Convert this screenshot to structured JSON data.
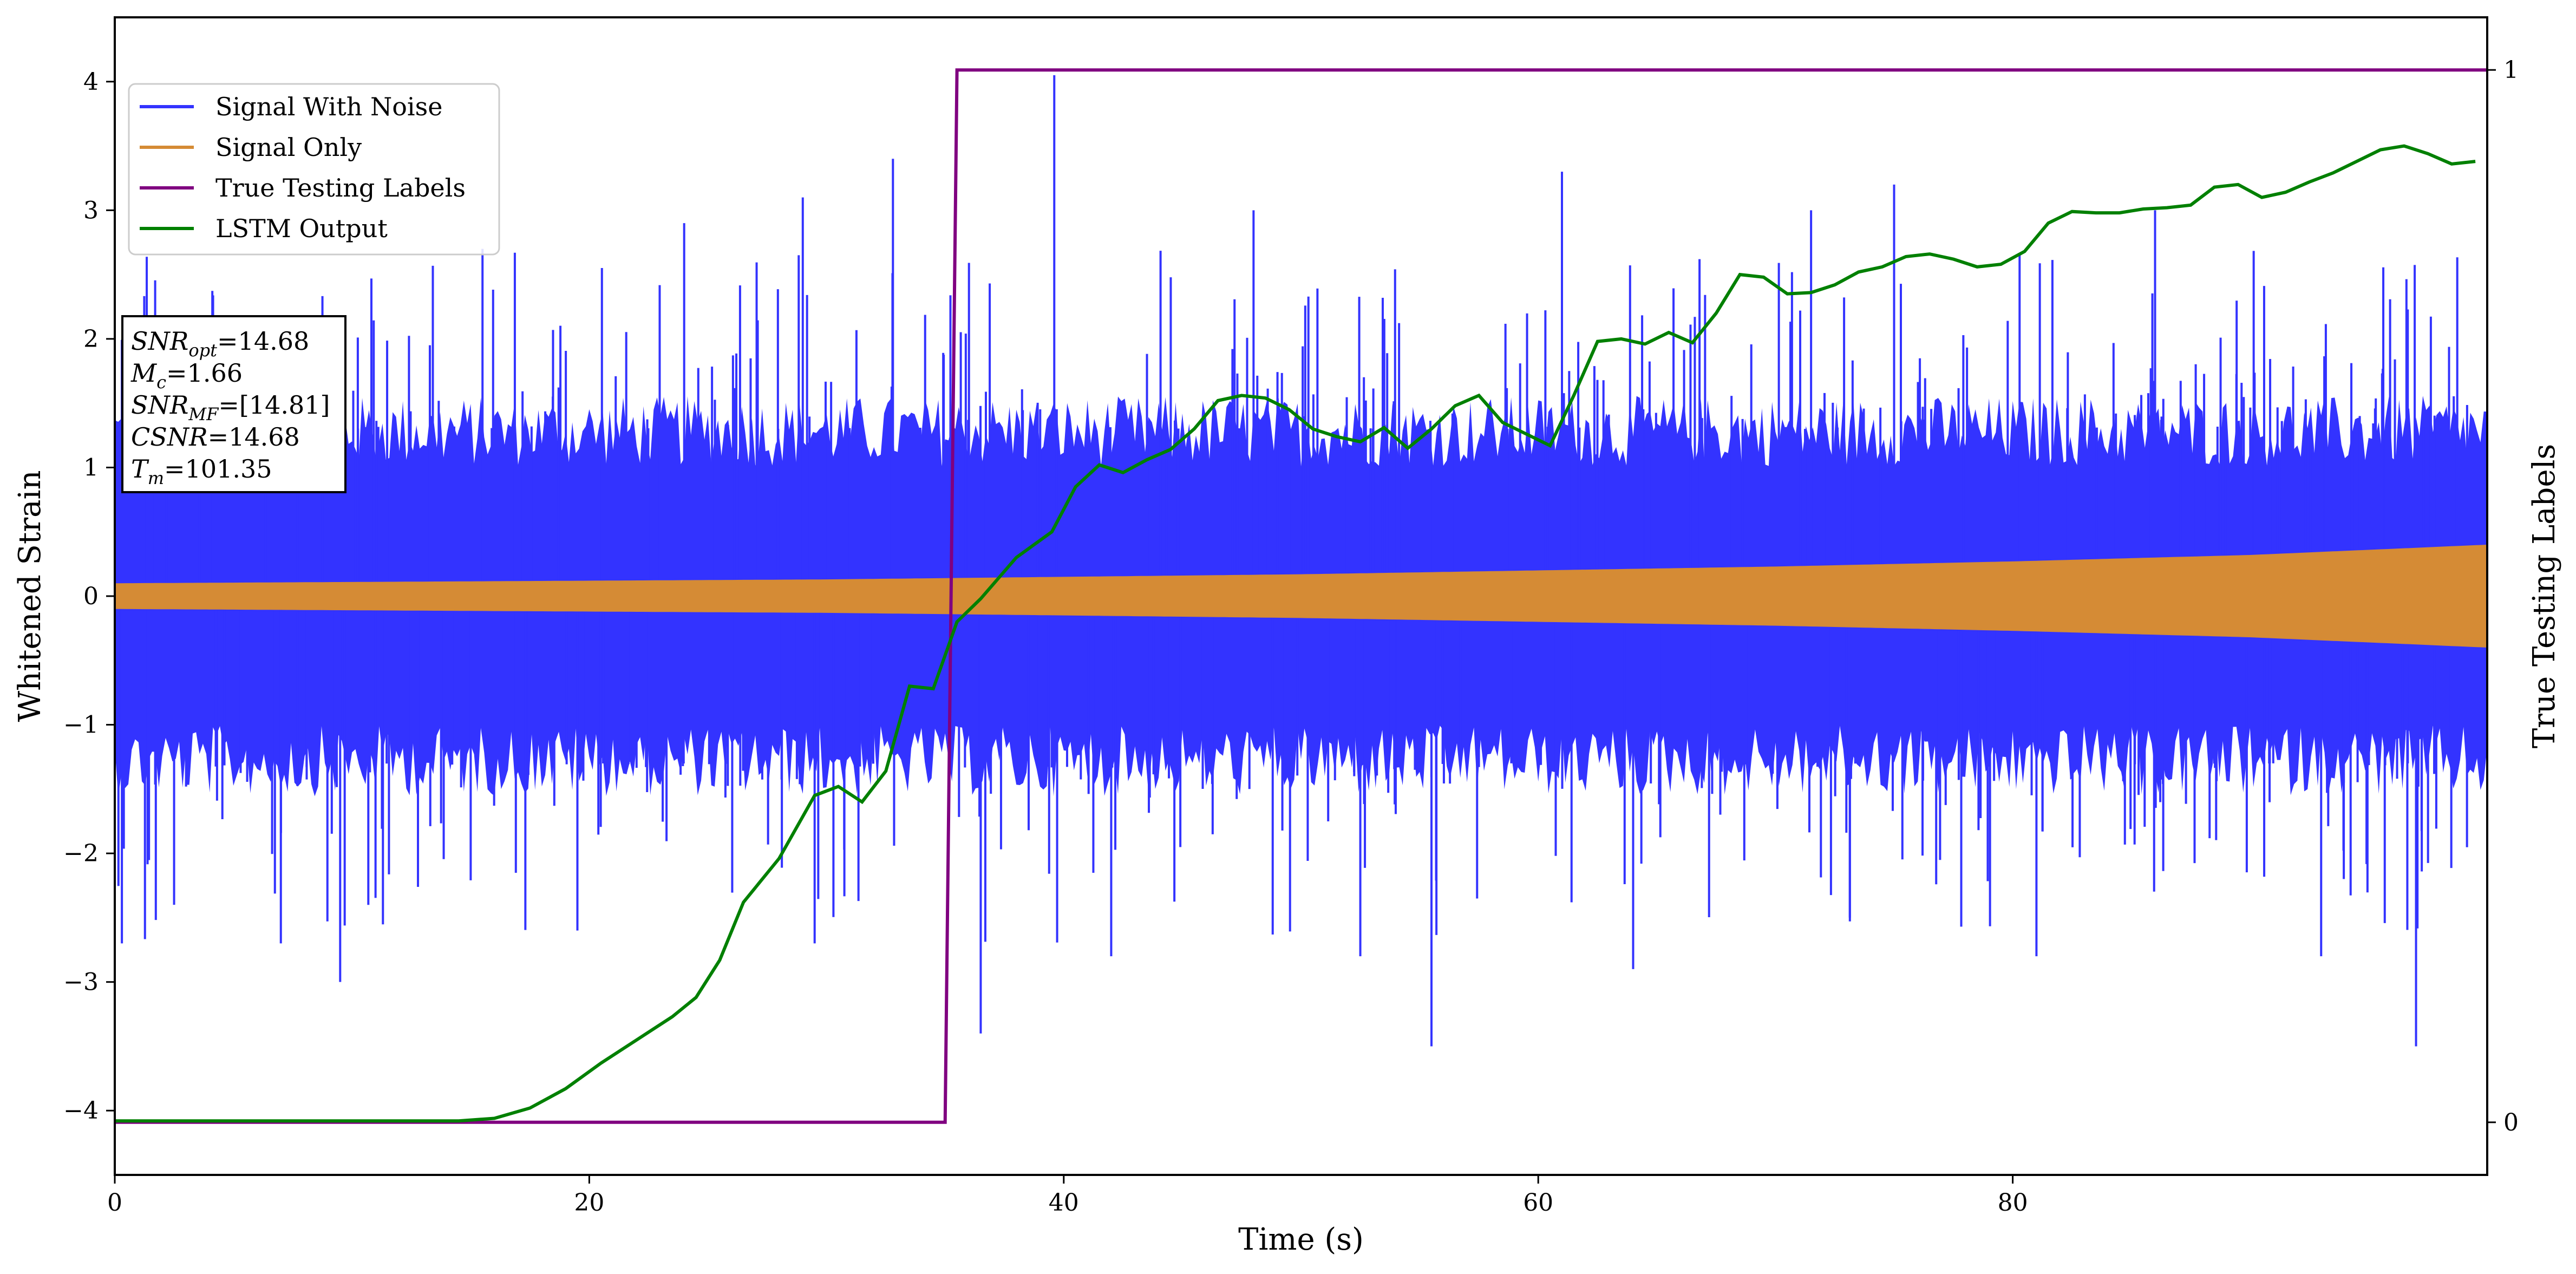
{
  "chart_data": {
    "type": "line",
    "xlabel": "Time (s)",
    "ylabel": "Whitened Strain",
    "y2label": "True Testing Labels",
    "xlim": [
      0,
      100
    ],
    "ylim": [
      -4.5,
      4.5
    ],
    "y2lim": [
      -0.05,
      1.05
    ],
    "x_ticks": [
      0,
      20,
      40,
      60,
      80
    ],
    "x_tick_labels": [
      "0",
      "20",
      "40",
      "60",
      "80"
    ],
    "y_ticks": [
      -4,
      -3,
      -2,
      -1,
      0,
      1,
      2,
      3,
      4
    ],
    "y_tick_labels": [
      "−4",
      "−3",
      "−2",
      "−1",
      "0",
      "1",
      "2",
      "3",
      "4"
    ],
    "y2_ticks": [
      0,
      1
    ],
    "y2_tick_labels": [
      "0",
      "1"
    ],
    "grid": false,
    "legend_position": "top-left",
    "series": [
      {
        "name": "Signal With Noise",
        "color": "#3333ff",
        "axis": "left",
        "envelope": {
          "x": [
            0,
            5,
            10,
            15,
            20,
            25,
            30,
            35,
            40,
            45,
            50,
            55,
            60,
            65,
            70,
            75,
            80,
            85,
            90,
            95,
            100
          ],
          "typical_upper": [
            1.2,
            1.2,
            1.2,
            1.2,
            1.2,
            1.2,
            1.2,
            1.2,
            1.2,
            1.2,
            1.2,
            1.2,
            1.2,
            1.2,
            1.2,
            1.2,
            1.2,
            1.2,
            1.2,
            1.2,
            1.2
          ],
          "typical_lower": [
            -1.2,
            -1.2,
            -1.2,
            -1.2,
            -1.2,
            -1.2,
            -1.2,
            -1.2,
            -1.2,
            -1.2,
            -1.2,
            -1.2,
            -1.2,
            -1.2,
            -1.2,
            -1.2,
            -1.2,
            -1.2,
            -1.2,
            -1.2,
            -1.2
          ]
        },
        "peaks": [
          {
            "x": 0.3,
            "y": -2.7
          },
          {
            "x": 2.5,
            "y": -2.4
          },
          {
            "x": 7.0,
            "y": -2.7
          },
          {
            "x": 9.5,
            "y": -3.0
          },
          {
            "x": 15.5,
            "y": 2.7
          },
          {
            "x": 19.5,
            "y": -2.6
          },
          {
            "x": 24.0,
            "y": 2.9
          },
          {
            "x": 29.0,
            "y": 3.1
          },
          {
            "x": 29.5,
            "y": -2.7
          },
          {
            "x": 32.8,
            "y": 3.4
          },
          {
            "x": 36.5,
            "y": -3.4
          },
          {
            "x": 39.6,
            "y": 4.05
          },
          {
            "x": 42.0,
            "y": -2.8
          },
          {
            "x": 48.0,
            "y": 3.0
          },
          {
            "x": 52.5,
            "y": -2.8
          },
          {
            "x": 55.5,
            "y": -3.5
          },
          {
            "x": 61.0,
            "y": 3.3
          },
          {
            "x": 64.0,
            "y": -2.9
          },
          {
            "x": 71.5,
            "y": 3.0
          },
          {
            "x": 75.0,
            "y": 3.2
          },
          {
            "x": 81.0,
            "y": -2.8
          },
          {
            "x": 86.0,
            "y": 3.0
          },
          {
            "x": 93.0,
            "y": -2.8
          },
          {
            "x": 97.0,
            "y": -3.5
          }
        ]
      },
      {
        "name": "Signal Only",
        "color": "#d58b35",
        "axis": "left",
        "envelope": {
          "x": [
            0,
            10,
            20,
            30,
            40,
            50,
            60,
            70,
            80,
            90,
            100
          ],
          "upper": [
            0.1,
            0.11,
            0.12,
            0.13,
            0.15,
            0.17,
            0.2,
            0.23,
            0.27,
            0.32,
            0.4
          ]
        }
      },
      {
        "name": "True Testing Labels",
        "color": "#800080",
        "axis": "right",
        "x": [
          0,
          35.0,
          35.5,
          100
        ],
        "y": [
          0,
          0,
          1,
          1
        ]
      },
      {
        "name": "LSTM Output",
        "color": "#008000",
        "axis": "left",
        "x": [
          0,
          14.5,
          16,
          17.5,
          19,
          20.5,
          22,
          23.5,
          24.5,
          25.5,
          26.5,
          28,
          29.5,
          30.5,
          31.5,
          32.5,
          33.5,
          34.5,
          35.5,
          36.5,
          38,
          39.5,
          40.5,
          41.5,
          42.5,
          43.5,
          44.5,
          45.5,
          46.5,
          47.5,
          48.5,
          49.5,
          50.5,
          51.5,
          52.5,
          53.5,
          54.5,
          55.5,
          56.5,
          57.5,
          58.5,
          59.5,
          60.5,
          61.5,
          62.5,
          63.5,
          64.5,
          65.5,
          66.5,
          67.5,
          68.5,
          69.5,
          70.5,
          71.5,
          72.5,
          73.5,
          74.5,
          75.5,
          76.5,
          77.5,
          78.5,
          79.5,
          80.5,
          81.5,
          82.5,
          83.5,
          84.5,
          85.5,
          86.5,
          87.5,
          88.5,
          89.5,
          90.5,
          91.5,
          92.5,
          93.5,
          94.5,
          95.5,
          96.5,
          97.5,
          98.5,
          99.5
        ],
        "y": [
          -4.08,
          -4.08,
          -4.06,
          -3.98,
          -3.83,
          -3.63,
          -3.45,
          -3.27,
          -3.12,
          -2.83,
          -2.38,
          -2.04,
          -1.55,
          -1.48,
          -1.6,
          -1.36,
          -0.7,
          -0.72,
          -0.2,
          -0.02,
          0.3,
          0.5,
          0.85,
          1.02,
          0.96,
          1.06,
          1.14,
          1.3,
          1.52,
          1.56,
          1.54,
          1.45,
          1.3,
          1.24,
          1.2,
          1.31,
          1.15,
          1.3,
          1.48,
          1.56,
          1.35,
          1.26,
          1.17,
          1.56,
          1.98,
          2.0,
          1.96,
          2.05,
          1.97,
          2.2,
          2.5,
          2.48,
          2.35,
          2.36,
          2.42,
          2.52,
          2.56,
          2.64,
          2.66,
          2.62,
          2.56,
          2.58,
          2.68,
          2.9,
          2.99,
          2.98,
          2.98,
          3.01,
          3.02,
          3.04,
          3.18,
          3.2,
          3.1,
          3.14,
          3.22,
          3.29,
          3.38,
          3.47,
          3.5,
          3.44,
          3.36,
          3.38
        ]
      }
    ],
    "annotation": [
      {
        "main": "SNR",
        "sub": "opt",
        "value": "=14.68"
      },
      {
        "main": "M",
        "sub": "c",
        "value": "=1.66"
      },
      {
        "main": "SNR",
        "sub": "MF",
        "value": "=[14.81]"
      },
      {
        "main": "CSNR",
        "sub": "",
        "value": "=14.68"
      },
      {
        "main": "T",
        "sub": "m",
        "value": "=101.35"
      }
    ]
  }
}
